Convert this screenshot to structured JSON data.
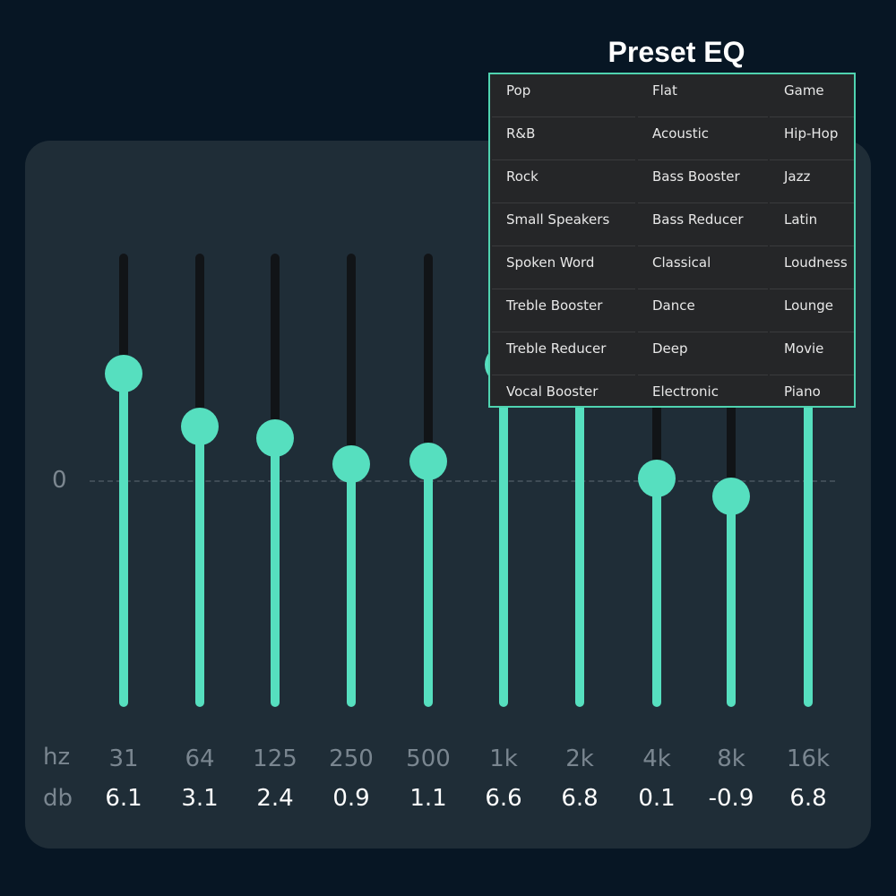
{
  "title": "Preset EQ",
  "zero_label": "0",
  "row_labels": {
    "hz": "hz",
    "db": "db"
  },
  "colors": {
    "background": "#071624",
    "panel": "#1f2d37",
    "accent": "#56dfbf",
    "track": "#111417",
    "menu_bg": "#252628",
    "menu_border": "#4fd3b0"
  },
  "bands": [
    {
      "freq": "31",
      "gain": "6.1",
      "value": 6.1
    },
    {
      "freq": "64",
      "gain": "3.1",
      "value": 3.1
    },
    {
      "freq": "125",
      "gain": "2.4",
      "value": 2.4
    },
    {
      "freq": "250",
      "gain": "0.9",
      "value": 0.9
    },
    {
      "freq": "500",
      "gain": "1.1",
      "value": 1.1
    },
    {
      "freq": "1k",
      "gain": "6.6",
      "value": 6.6
    },
    {
      "freq": "2k",
      "gain": "6.8",
      "value": 6.8
    },
    {
      "freq": "4k",
      "gain": "0.1",
      "value": 0.1
    },
    {
      "freq": "8k",
      "gain": "-0.9",
      "value": -0.9
    },
    {
      "freq": "16k",
      "gain": "6.8",
      "value": 6.8
    }
  ],
  "presets": [
    [
      "Pop",
      "R&B",
      "Rock",
      "Small Speakers",
      "Spoken Word",
      "Treble Booster",
      "Treble Reducer",
      "Vocal Booster"
    ],
    [
      "Flat",
      "Acoustic",
      "Bass Booster",
      "Bass Reducer",
      "Classical",
      "Dance",
      "Deep",
      "Electronic"
    ],
    [
      "Game",
      "Hip-Hop",
      "Jazz",
      "Latin",
      "Loudness",
      "Lounge",
      "Movie",
      "Piano"
    ]
  ]
}
